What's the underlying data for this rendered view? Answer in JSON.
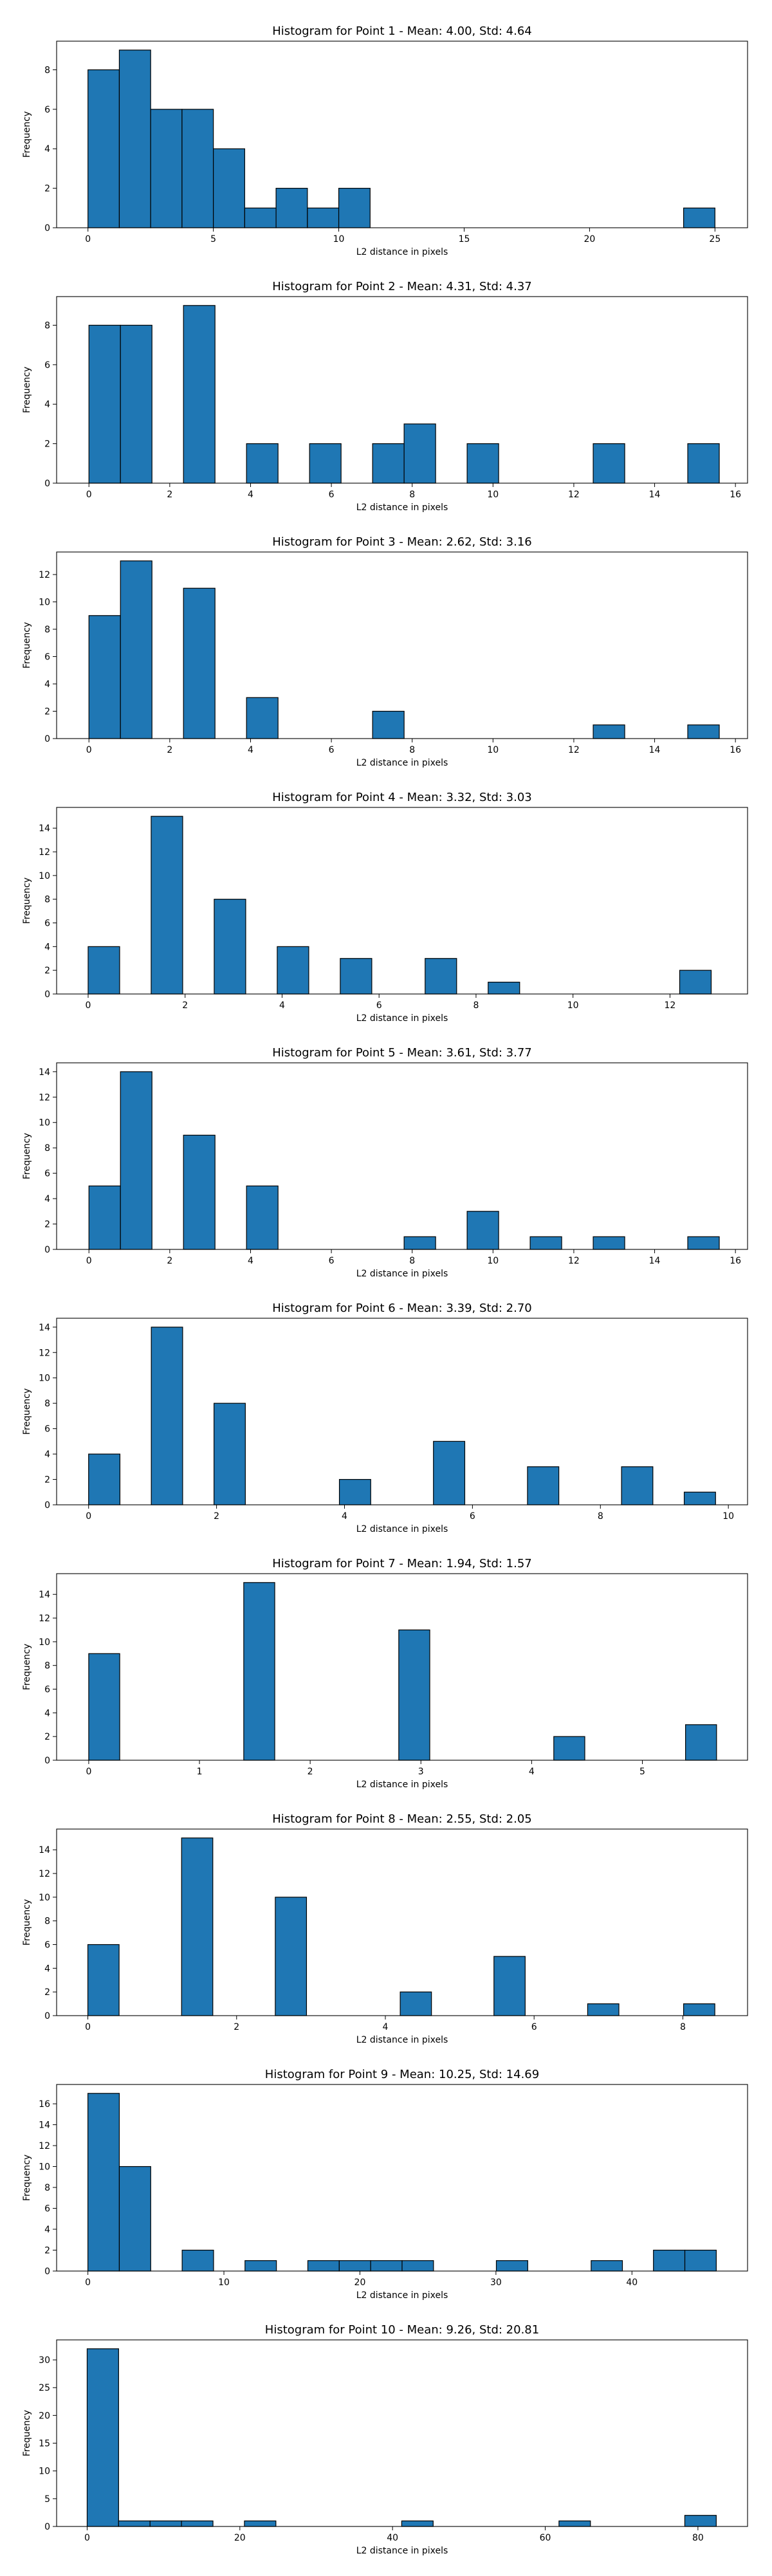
{
  "chart_data": [
    {
      "type": "bar",
      "title": "Histogram for Point 1 - Mean: 4.00, Std: 4.64",
      "xlabel": "L2 distance in pixels",
      "ylabel": "Frequency",
      "xlim": [
        -1.25,
        26.3
      ],
      "ylim": [
        0,
        9.45
      ],
      "xticks": [
        0,
        5,
        10,
        15,
        20,
        25
      ],
      "yticks": [
        0,
        2,
        4,
        6,
        8
      ],
      "bins": [
        [
          0,
          1.25,
          8
        ],
        [
          1.25,
          2.5,
          9
        ],
        [
          2.5,
          3.75,
          6
        ],
        [
          3.75,
          5,
          6
        ],
        [
          5,
          6.25,
          4
        ],
        [
          6.25,
          7.5,
          1
        ],
        [
          7.5,
          8.75,
          2
        ],
        [
          8.75,
          10,
          1
        ],
        [
          10,
          11.25,
          2
        ],
        [
          23.75,
          25,
          1
        ]
      ]
    },
    {
      "type": "bar",
      "title": "Histogram for Point 2 - Mean: 4.31, Std: 4.37",
      "xlabel": "L2 distance in pixels",
      "ylabel": "Frequency",
      "xlim": [
        -0.8,
        16.3
      ],
      "ylim": [
        0,
        9.45
      ],
      "xticks": [
        0,
        2,
        4,
        6,
        8,
        10,
        12,
        14,
        16
      ],
      "yticks": [
        0,
        2,
        4,
        6,
        8
      ],
      "bins": [
        [
          0,
          0.78,
          8
        ],
        [
          0.78,
          1.56,
          8
        ],
        [
          2.34,
          3.12,
          9
        ],
        [
          3.9,
          4.68,
          2
        ],
        [
          5.46,
          6.24,
          2
        ],
        [
          7.02,
          7.8,
          2
        ],
        [
          7.8,
          8.58,
          3
        ],
        [
          9.36,
          10.14,
          2
        ],
        [
          12.48,
          13.26,
          2
        ],
        [
          14.82,
          15.6,
          2
        ]
      ]
    },
    {
      "type": "bar",
      "title": "Histogram for Point 3 - Mean: 2.62, Std: 3.16",
      "xlabel": "L2 distance in pixels",
      "ylabel": "Frequency",
      "xlim": [
        -0.8,
        16.3
      ],
      "ylim": [
        0,
        13.65
      ],
      "xticks": [
        0,
        2,
        4,
        6,
        8,
        10,
        12,
        14,
        16
      ],
      "yticks": [
        0,
        2,
        4,
        6,
        8,
        10,
        12
      ],
      "bins": [
        [
          0,
          0.78,
          9
        ],
        [
          0.78,
          1.56,
          13
        ],
        [
          2.34,
          3.12,
          11
        ],
        [
          3.9,
          4.68,
          3
        ],
        [
          7.02,
          7.8,
          2
        ],
        [
          12.48,
          13.26,
          1
        ],
        [
          14.82,
          15.6,
          1
        ]
      ]
    },
    {
      "type": "bar",
      "title": "Histogram for Point 4 - Mean: 3.32, Std: 3.03",
      "xlabel": "L2 distance in pixels",
      "ylabel": "Frequency",
      "xlim": [
        -0.65,
        13.6
      ],
      "ylim": [
        0,
        15.75
      ],
      "xticks": [
        0,
        2,
        4,
        6,
        8,
        10,
        12
      ],
      "yticks": [
        0,
        2,
        4,
        6,
        8,
        10,
        12,
        14
      ],
      "bins": [
        [
          0,
          0.65,
          4
        ],
        [
          1.3,
          1.95,
          15
        ],
        [
          2.6,
          3.25,
          8
        ],
        [
          3.9,
          4.55,
          4
        ],
        [
          5.2,
          5.85,
          3
        ],
        [
          6.95,
          7.6,
          3
        ],
        [
          8.25,
          8.9,
          1
        ],
        [
          12.2,
          12.85,
          2
        ]
      ]
    },
    {
      "type": "bar",
      "title": "Histogram for Point 5 - Mean: 3.61, Std: 3.77",
      "xlabel": "L2 distance in pixels",
      "ylabel": "Frequency",
      "xlim": [
        -0.8,
        16.3
      ],
      "ylim": [
        0,
        14.7
      ],
      "xticks": [
        0,
        2,
        4,
        6,
        8,
        10,
        12,
        14,
        16
      ],
      "yticks": [
        0,
        2,
        4,
        6,
        8,
        10,
        12,
        14
      ],
      "bins": [
        [
          0,
          0.78,
          5
        ],
        [
          0.78,
          1.56,
          14
        ],
        [
          2.34,
          3.12,
          9
        ],
        [
          3.9,
          4.68,
          5
        ],
        [
          7.8,
          8.58,
          1
        ],
        [
          9.36,
          10.14,
          3
        ],
        [
          10.92,
          11.7,
          1
        ],
        [
          12.48,
          13.26,
          1
        ],
        [
          14.82,
          15.6,
          1
        ]
      ]
    },
    {
      "type": "bar",
      "title": "Histogram for Point 6 - Mean: 3.39, Std: 2.70",
      "xlabel": "L2 distance in pixels",
      "ylabel": "Frequency",
      "xlim": [
        -0.5,
        10.3
      ],
      "ylim": [
        0,
        14.7
      ],
      "xticks": [
        0,
        2,
        4,
        6,
        8,
        10
      ],
      "yticks": [
        0,
        2,
        4,
        6,
        8,
        10,
        12,
        14
      ],
      "bins": [
        [
          0,
          0.49,
          4
        ],
        [
          0.98,
          1.47,
          14
        ],
        [
          1.96,
          2.45,
          8
        ],
        [
          3.92,
          4.41,
          2
        ],
        [
          5.39,
          5.88,
          5
        ],
        [
          6.86,
          7.35,
          3
        ],
        [
          8.33,
          8.82,
          3
        ],
        [
          9.31,
          9.8,
          1
        ]
      ]
    },
    {
      "type": "bar",
      "title": "Histogram for Point 7 - Mean: 1.94, Std: 1.57",
      "xlabel": "L2 distance in pixels",
      "ylabel": "Frequency",
      "xlim": [
        -0.29,
        5.95
      ],
      "ylim": [
        0,
        15.75
      ],
      "xticks": [
        0,
        1,
        2,
        3,
        4,
        5
      ],
      "yticks": [
        0,
        2,
        4,
        6,
        8,
        10,
        12,
        14
      ],
      "bins": [
        [
          0,
          0.28,
          9
        ],
        [
          1.4,
          1.68,
          15
        ],
        [
          2.8,
          3.08,
          11
        ],
        [
          4.2,
          4.48,
          2
        ],
        [
          5.39,
          5.67,
          3
        ]
      ]
    },
    {
      "type": "bar",
      "title": "Histogram for Point 8 - Mean: 2.55, Std: 2.05",
      "xlabel": "L2 distance in pixels",
      "ylabel": "Frequency",
      "xlim": [
        -0.42,
        8.87
      ],
      "ylim": [
        0,
        15.75
      ],
      "xticks": [
        0,
        2,
        4,
        6,
        8
      ],
      "yticks": [
        0,
        2,
        4,
        6,
        8,
        10,
        12,
        14
      ],
      "bins": [
        [
          0,
          0.42,
          6
        ],
        [
          1.26,
          1.68,
          15
        ],
        [
          2.52,
          2.94,
          10
        ],
        [
          4.2,
          4.62,
          2
        ],
        [
          5.46,
          5.88,
          5
        ],
        [
          6.72,
          7.14,
          1
        ],
        [
          8.01,
          8.43,
          1
        ]
      ]
    },
    {
      "type": "bar",
      "title": "Histogram for Point 9 - Mean: 10.25, Std: 14.69",
      "xlabel": "L2 distance in pixels",
      "ylabel": "Frequency",
      "xlim": [
        -2.3,
        48.5
      ],
      "ylim": [
        0,
        17.85
      ],
      "xticks": [
        0,
        10,
        20,
        30,
        40
      ],
      "yticks": [
        0,
        2,
        4,
        6,
        8,
        10,
        12,
        14,
        16
      ],
      "bins": [
        [
          0,
          2.31,
          17
        ],
        [
          2.31,
          4.62,
          10
        ],
        [
          6.93,
          9.24,
          2
        ],
        [
          11.55,
          13.86,
          1
        ],
        [
          16.17,
          18.48,
          1
        ],
        [
          18.48,
          20.79,
          1
        ],
        [
          20.79,
          23.1,
          1
        ],
        [
          23.1,
          25.41,
          1
        ],
        [
          30.03,
          32.34,
          1
        ],
        [
          37.0,
          39.3,
          1
        ],
        [
          41.58,
          43.89,
          2
        ],
        [
          43.89,
          46.2,
          2
        ]
      ]
    },
    {
      "type": "bar",
      "title": "Histogram for Point 10 - Mean: 9.26, Std: 20.81",
      "xlabel": "L2 distance in pixels",
      "ylabel": "Frequency",
      "xlim": [
        -4.0,
        86.5
      ],
      "ylim": [
        0,
        33.6
      ],
      "xticks": [
        0,
        20,
        40,
        60,
        80
      ],
      "yticks": [
        0,
        5,
        10,
        15,
        20,
        25,
        30
      ],
      "bins": [
        [
          0,
          4.12,
          32
        ],
        [
          4.12,
          8.24,
          1
        ],
        [
          8.24,
          12.36,
          1
        ],
        [
          12.36,
          16.48,
          1
        ],
        [
          20.6,
          24.72,
          1
        ],
        [
          41.2,
          45.32,
          1
        ],
        [
          61.8,
          65.92,
          1
        ],
        [
          78.28,
          82.4,
          2
        ]
      ]
    }
  ],
  "colors": {
    "bar": "#1f77b4",
    "edge": "#000000"
  }
}
